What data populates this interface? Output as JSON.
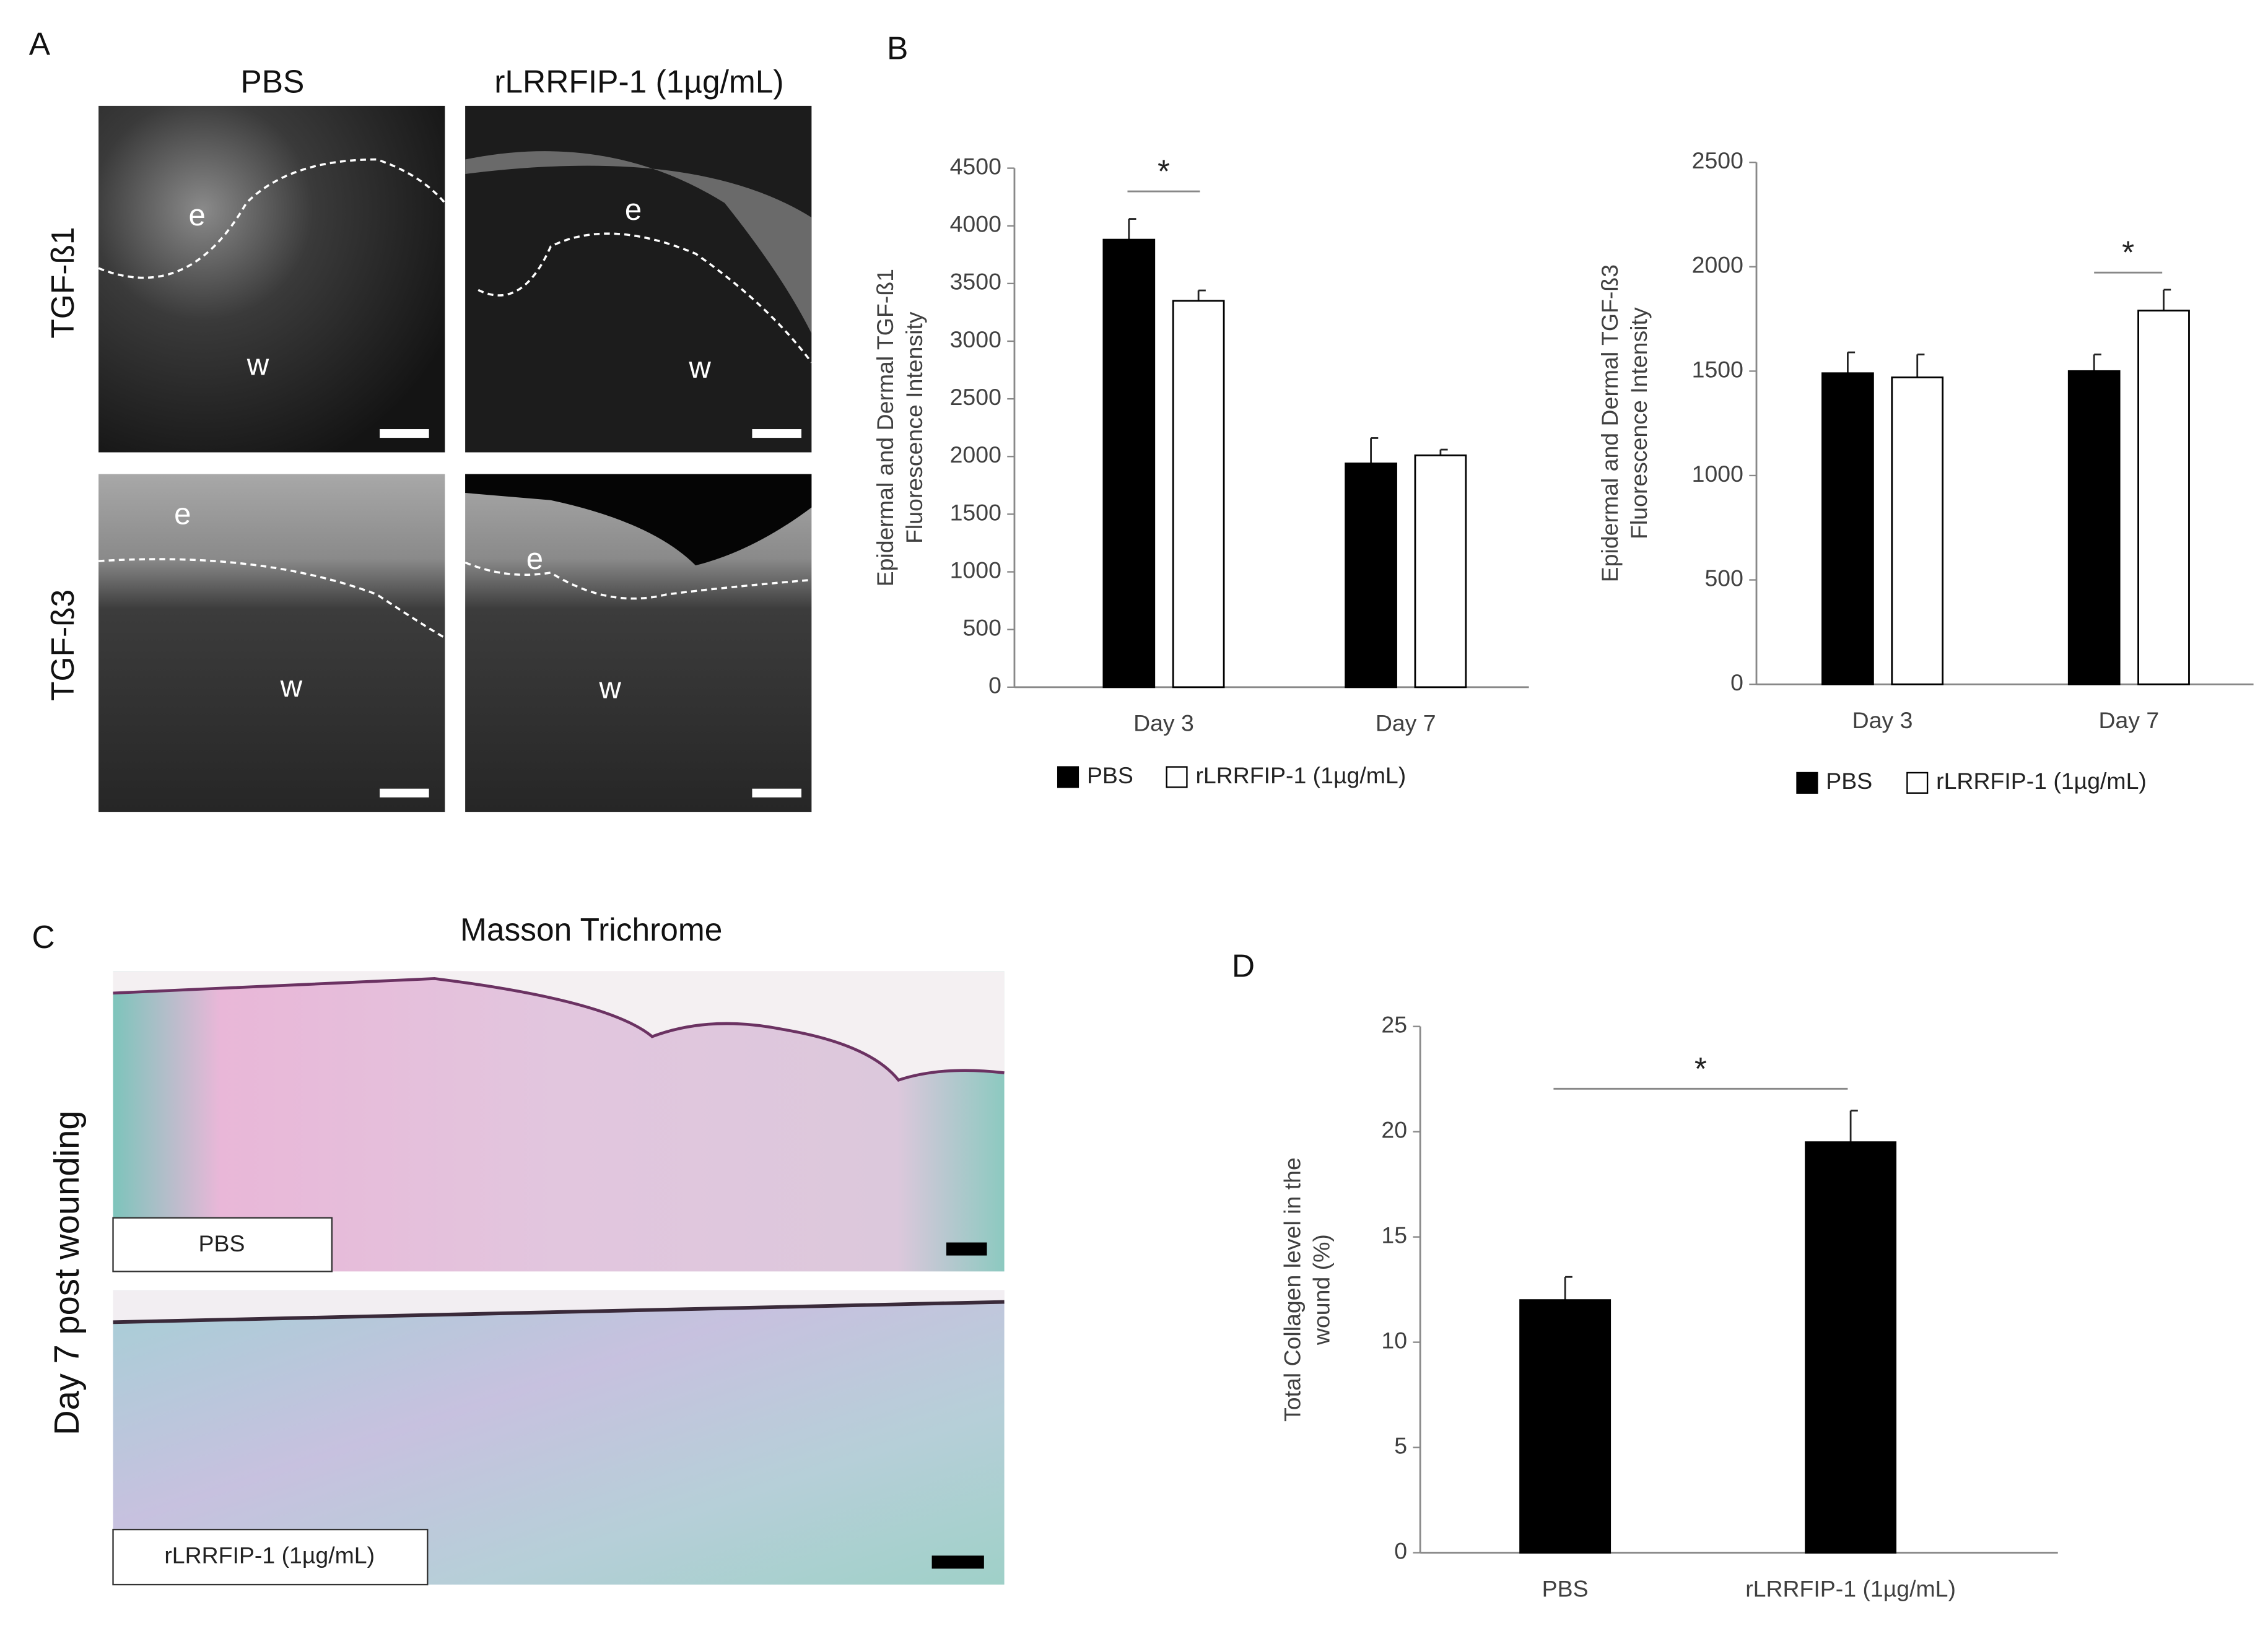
{
  "panels": {
    "a": {
      "label": "A",
      "columns": [
        "PBS",
        "rLRRFIP-1 (1µg/mL)"
      ],
      "rows": [
        "TGF-ß1",
        "TGF-ß3"
      ],
      "regions": [
        "e",
        "w"
      ]
    },
    "b": {
      "label": "B"
    },
    "c": {
      "label": "C",
      "title": "Masson Trichrome",
      "side_label": "Day 7 post wounding",
      "image_labels": [
        "PBS",
        "rLRRFIP-1 (1µg/mL)"
      ]
    },
    "d": {
      "label": "D"
    }
  },
  "chart_data": [
    {
      "type": "bar",
      "ylabel": [
        "Epidermal and Dermal TGF-ß1",
        "Fluorescence  Intensity"
      ],
      "categories": [
        "Day 3",
        "Day 7"
      ],
      "series": [
        {
          "name": "PBS",
          "color": "#000000",
          "values": [
            3880,
            1940
          ],
          "errors": [
            180,
            220
          ]
        },
        {
          "name": "rLRRFIP-1 (1µg/mL)",
          "color": "#ffffff",
          "values": [
            3350,
            2010
          ],
          "errors": [
            90,
            50
          ]
        }
      ],
      "ylim": [
        0,
        4500
      ],
      "yticks": [
        0,
        500,
        1000,
        1500,
        2000,
        2500,
        3000,
        3500,
        4000,
        4500
      ],
      "annotations": [
        "*"
      ],
      "legend": "bottom"
    },
    {
      "type": "bar",
      "ylabel": [
        "Epidermal and Dermal TGF-ß3",
        "Fluorescence  Intensity"
      ],
      "categories": [
        "Day 3",
        "Day 7"
      ],
      "series": [
        {
          "name": "PBS",
          "color": "#000000",
          "values": [
            1490,
            1500
          ],
          "errors": [
            100,
            80
          ]
        },
        {
          "name": "rLRRFIP-1 (1µg/mL)",
          "color": "#ffffff",
          "values": [
            1470,
            1790
          ],
          "errors": [
            110,
            100
          ]
        }
      ],
      "ylim": [
        0,
        2500
      ],
      "yticks": [
        0,
        500,
        1000,
        1500,
        2000,
        2500
      ],
      "annotations": [
        "*"
      ],
      "legend": "bottom"
    },
    {
      "type": "bar",
      "ylabel": [
        "Total Collagen level  in the",
        "wound (%)"
      ],
      "categories": [
        "PBS",
        "rLRRFIP-1 (1µg/mL)"
      ],
      "series": [
        {
          "color": "#000000",
          "values": [
            12,
            19.5
          ],
          "errors": [
            1.1,
            1.5
          ]
        }
      ],
      "ylim": [
        0,
        25
      ],
      "yticks": [
        0,
        5,
        10,
        15,
        20,
        25
      ],
      "annotations": [
        "*"
      ]
    }
  ]
}
